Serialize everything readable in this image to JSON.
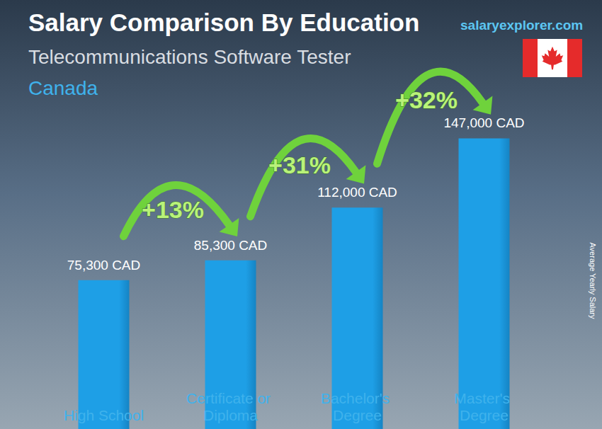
{
  "chart_data": {
    "type": "bar",
    "title": "Salary Comparison By Education",
    "subtitle": "Telecommunications Software Tester",
    "location": "Canada",
    "source": "salaryexplorer.com",
    "y_label": "Average Yearly Salary",
    "categories": [
      "High School",
      "Certificate or Diploma",
      "Bachelor's Degree",
      "Master's Degree"
    ],
    "values": [
      75300,
      85300,
      112000,
      147000
    ],
    "value_labels": [
      "75,300 CAD",
      "85,300 CAD",
      "112,000 CAD",
      "147,000 CAD"
    ],
    "annotations": [
      "+13%",
      "+31%",
      "+32%"
    ],
    "color": "#1e9fe6",
    "ylim": [
      0,
      150000
    ],
    "yticks": [
      0,
      50000,
      100000,
      150000
    ],
    "grid": false,
    "tick_labels": false,
    "data_labels": true
  }
}
